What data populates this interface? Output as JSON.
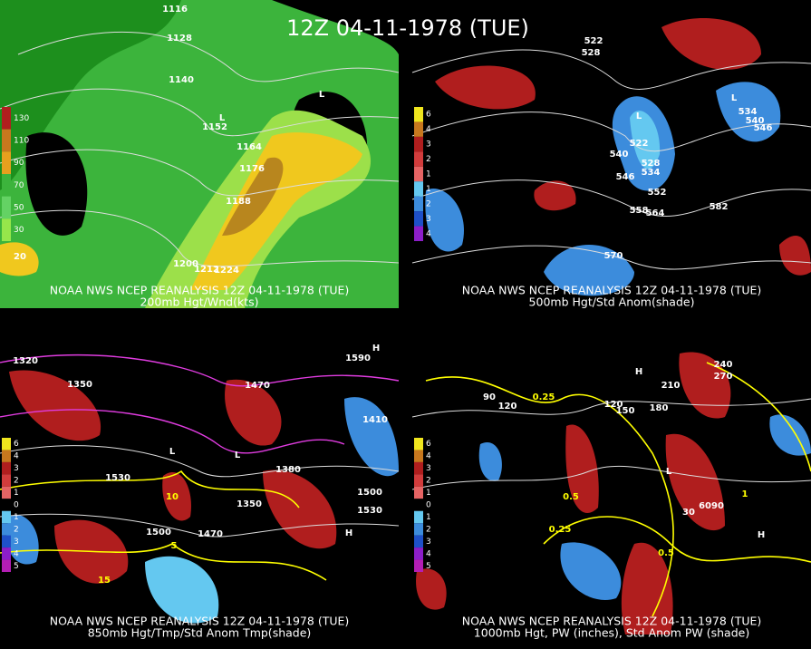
{
  "title": "12Z 04-11-1978 (TUE)",
  "panels": [
    {
      "caption": [
        "NOAA NWS NCEP REANALYSIS 12Z 04-11-1978 (TUE)",
        "200mb Hgt/Wnd(kts)"
      ],
      "legend": [
        "130",
        "110",
        "90",
        "70",
        "50",
        "30"
      ],
      "labels": [
        "1116",
        "1128",
        "1140",
        "1152",
        "1164",
        "1176",
        "1188",
        "1200",
        "1212",
        "1224",
        "20",
        "L",
        "L"
      ]
    },
    {
      "caption": [
        "NOAA NWS NCEP REANALYSIS 12Z 04-11-1978 (TUE)",
        "500mb Hgt/Std Anom(shade)"
      ],
      "legend": [
        "6",
        "4",
        "3",
        "2",
        "1",
        "1",
        "2",
        "3",
        "4"
      ],
      "labels": [
        "L",
        "522",
        "528",
        "534",
        "540",
        "546",
        "552",
        "558",
        "564",
        "582",
        "570",
        "528",
        "522",
        "534",
        "540",
        "546",
        "L"
      ]
    },
    {
      "caption": [
        "NOAA NWS NCEP REANALYSIS 12Z 04-11-1978 (TUE)",
        "850mb Hgt/Tmp/Std Anom Tmp(shade)"
      ],
      "legend": [
        "6",
        "4",
        "3",
        "2",
        "1",
        "0",
        "1",
        "2",
        "3",
        "4",
        "5"
      ],
      "labels": [
        "1320",
        "1350",
        "1530",
        "1500",
        "1470",
        "1470",
        "1350",
        "1380",
        "1410",
        "1500",
        "1530",
        "1590",
        "H",
        "H",
        "L",
        "L",
        "15",
        "10",
        "5"
      ]
    },
    {
      "caption": [
        "NOAA NWS NCEP REANALYSIS 12Z 04-11-1978 (TUE)",
        "1000mb Hgt, PW (inches), Std Anom PW (shade)"
      ],
      "legend": [
        "6",
        "4",
        "3",
        "2",
        "1",
        "0",
        "1",
        "2",
        "3",
        "4",
        "5"
      ],
      "labels": [
        "90",
        "120",
        "120",
        "150",
        "180",
        "210",
        "240",
        "270",
        "0.25",
        "0.25",
        "0.5",
        "0.5",
        "1",
        "H",
        "H",
        "L",
        "6090",
        "30"
      ]
    }
  ]
}
